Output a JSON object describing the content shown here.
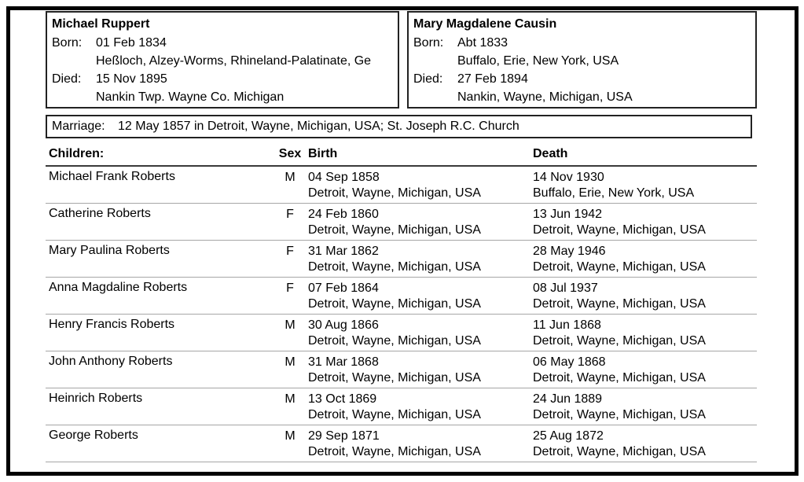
{
  "husband": {
    "name": "Michael Ruppert",
    "born_label": "Born:",
    "born_date": "01 Feb 1834",
    "born_place": "Heßloch, Alzey-Worms, Rhineland-Palatinate, Ge",
    "died_label": "Died:",
    "died_date": "15 Nov 1895",
    "died_place": "Nankin Twp. Wayne Co. Michigan"
  },
  "wife": {
    "name": "Mary Magdalene Causin",
    "born_label": "Born:",
    "born_date": "Abt 1833",
    "born_place": "Buffalo, Erie, New York, USA",
    "died_label": "Died:",
    "died_date": "27 Feb 1894",
    "died_place": "Nankin, Wayne, Michigan, USA"
  },
  "marriage": {
    "label": "Marriage:",
    "value": "12 May 1857 in Detroit, Wayne, Michigan, USA; St. Joseph R.C. Church"
  },
  "children_table": {
    "headers": {
      "name": "Children:",
      "sex": "Sex",
      "birth": "Birth",
      "death": "Death"
    },
    "rows": [
      {
        "name": "Michael Frank Roberts",
        "sex": "M",
        "birth_date": "04 Sep 1858",
        "birth_place": "Detroit, Wayne, Michigan, USA",
        "death_date": "14 Nov 1930",
        "death_place": "Buffalo, Erie, New York, USA"
      },
      {
        "name": "Catherine Roberts",
        "sex": "F",
        "birth_date": "24 Feb 1860",
        "birth_place": "Detroit, Wayne, Michigan, USA",
        "death_date": "13 Jun 1942",
        "death_place": "Detroit, Wayne, Michigan, USA"
      },
      {
        "name": "Mary Paulina Roberts",
        "sex": "F",
        "birth_date": "31 Mar 1862",
        "birth_place": "Detroit, Wayne, Michigan, USA",
        "death_date": "28 May 1946",
        "death_place": "Detroit, Wayne, Michigan, USA"
      },
      {
        "name": "Anna Magdaline Roberts",
        "sex": "F",
        "birth_date": "07 Feb 1864",
        "birth_place": "Detroit, Wayne, Michigan, USA",
        "death_date": "08 Jul 1937",
        "death_place": "Detroit, Wayne, Michigan, USA"
      },
      {
        "name": "Henry Francis Roberts",
        "sex": "M",
        "birth_date": "30 Aug 1866",
        "birth_place": "Detroit, Wayne, Michigan, USA",
        "death_date": "11 Jun 1868",
        "death_place": "Detroit, Wayne, Michigan, USA"
      },
      {
        "name": "John Anthony Roberts",
        "sex": "M",
        "birth_date": "31 Mar 1868",
        "birth_place": "Detroit, Wayne, Michigan, USA",
        "death_date": "06 May 1868",
        "death_place": "Detroit, Wayne, Michigan, USA"
      },
      {
        "name": "Heinrich Roberts",
        "sex": "M",
        "birth_date": "13 Oct 1869",
        "birth_place": "Detroit, Wayne, Michigan, USA",
        "death_date": "24 Jun 1889",
        "death_place": "Detroit, Wayne, Michigan, USA"
      },
      {
        "name": "George Roberts",
        "sex": "M",
        "birth_date": "29 Sep 1871",
        "birth_place": "Detroit, Wayne, Michigan, USA",
        "death_date": "25 Aug 1872",
        "death_place": "Detroit, Wayne, Michigan, USA"
      }
    ]
  },
  "colors": {
    "outer_border": "#000000",
    "box_border": "#222222",
    "header_rule": "#3a3a3a",
    "row_divider": "#a6a6a6",
    "text": "#000000"
  }
}
